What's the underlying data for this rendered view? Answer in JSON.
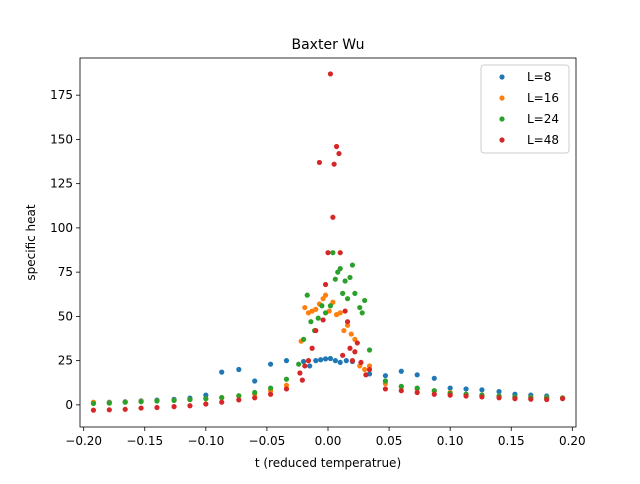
{
  "chart_data": {
    "type": "scatter",
    "title": "Baxter Wu",
    "xlabel": "t (reduced temperatrue)",
    "ylabel": "specific heat",
    "xlim": [
      -0.203,
      0.203
    ],
    "ylim": [
      -12.5,
      196
    ],
    "xticks": [
      -0.2,
      -0.15,
      -0.1,
      -0.05,
      0.0,
      0.05,
      0.1,
      0.15,
      0.2
    ],
    "xtick_labels": [
      "−0.20",
      "−0.15",
      "−0.10",
      "−0.05",
      "0.00",
      "0.05",
      "0.10",
      "0.15",
      "0.20"
    ],
    "yticks": [
      0,
      25,
      50,
      75,
      100,
      125,
      150,
      175
    ],
    "ytick_labels": [
      "0",
      "25",
      "50",
      "75",
      "100",
      "125",
      "150",
      "175"
    ],
    "grid": false,
    "legend_position": "top-right",
    "series": [
      {
        "name": "L=8",
        "color": "#1f77b4",
        "points": [
          [
            -0.192,
            1.0
          ],
          [
            -0.179,
            1.5
          ],
          [
            -0.166,
            1.8
          ],
          [
            -0.153,
            2.3
          ],
          [
            -0.14,
            2.7
          ],
          [
            -0.126,
            3.1
          ],
          [
            -0.113,
            3.8
          ],
          [
            -0.1,
            5.5
          ],
          [
            -0.087,
            18.5
          ],
          [
            -0.073,
            20.0
          ],
          [
            -0.06,
            13.5
          ],
          [
            -0.047,
            23.0
          ],
          [
            -0.034,
            25.0
          ],
          [
            -0.02,
            24.5
          ],
          [
            -0.015,
            22.0
          ],
          [
            -0.01,
            25.0
          ],
          [
            -0.006,
            25.5
          ],
          [
            -0.002,
            26.0
          ],
          [
            0.002,
            26.2
          ],
          [
            0.006,
            25.0
          ],
          [
            0.01,
            24.0
          ],
          [
            0.015,
            25.0
          ],
          [
            0.02,
            24.5
          ],
          [
            0.034,
            17.5
          ],
          [
            0.047,
            16.5
          ],
          [
            0.06,
            19.0
          ],
          [
            0.073,
            17.0
          ],
          [
            0.087,
            15.0
          ],
          [
            0.1,
            9.5
          ],
          [
            0.113,
            9.0
          ],
          [
            0.126,
            8.5
          ],
          [
            0.14,
            7.5
          ],
          [
            0.153,
            6.0
          ],
          [
            0.166,
            5.5
          ],
          [
            0.179,
            5.0
          ],
          [
            0.192,
            4.0
          ]
        ]
      },
      {
        "name": "L=16",
        "color": "#ff7f0e",
        "points": [
          [
            -0.192,
            1.5
          ],
          [
            -0.179,
            1.2
          ],
          [
            -0.166,
            1.6
          ],
          [
            -0.153,
            2.0
          ],
          [
            -0.14,
            2.3
          ],
          [
            -0.126,
            2.6
          ],
          [
            -0.113,
            3.0
          ],
          [
            -0.1,
            3.5
          ],
          [
            -0.087,
            4.0
          ],
          [
            -0.073,
            5.0
          ],
          [
            -0.06,
            6.0
          ],
          [
            -0.047,
            8.0
          ],
          [
            -0.034,
            11.0
          ],
          [
            -0.022,
            36.0
          ],
          [
            -0.019,
            55.0
          ],
          [
            -0.016,
            52.0
          ],
          [
            -0.013,
            53.0
          ],
          [
            -0.01,
            54.0
          ],
          [
            -0.007,
            57.0
          ],
          [
            -0.004,
            60.0
          ],
          [
            -0.002,
            62.0
          ],
          [
            0.001,
            53.0
          ],
          [
            0.004,
            58.0
          ],
          [
            0.007,
            51.0
          ],
          [
            0.01,
            52.0
          ],
          [
            0.013,
            42.0
          ],
          [
            0.016,
            45.0
          ],
          [
            0.019,
            40.0
          ],
          [
            0.022,
            37.0
          ],
          [
            0.026,
            22.0
          ],
          [
            0.03,
            20.0
          ],
          [
            0.034,
            22.0
          ],
          [
            0.047,
            12.0
          ],
          [
            0.06,
            10.0
          ],
          [
            0.073,
            9.0
          ],
          [
            0.087,
            8.0
          ],
          [
            0.1,
            7.0
          ],
          [
            0.113,
            6.0
          ],
          [
            0.126,
            5.5
          ],
          [
            0.14,
            5.0
          ],
          [
            0.153,
            4.5
          ],
          [
            0.166,
            4.3
          ],
          [
            0.179,
            4.2
          ],
          [
            0.192,
            4.0
          ]
        ]
      },
      {
        "name": "L=24",
        "color": "#2ca02c",
        "points": [
          [
            -0.192,
            0.8
          ],
          [
            -0.179,
            1.0
          ],
          [
            -0.166,
            1.5
          ],
          [
            -0.153,
            1.8
          ],
          [
            -0.14,
            2.2
          ],
          [
            -0.126,
            2.5
          ],
          [
            -0.113,
            3.0
          ],
          [
            -0.1,
            3.5
          ],
          [
            -0.087,
            4.2
          ],
          [
            -0.073,
            5.2
          ],
          [
            -0.06,
            7.0
          ],
          [
            -0.047,
            9.5
          ],
          [
            -0.034,
            14.5
          ],
          [
            -0.024,
            23.0
          ],
          [
            -0.02,
            37.0
          ],
          [
            -0.017,
            62.0
          ],
          [
            -0.014,
            47.0
          ],
          [
            -0.011,
            42.0
          ],
          [
            -0.008,
            49.0
          ],
          [
            -0.005,
            56.0
          ],
          [
            -0.002,
            52.0
          ],
          [
            0.002,
            56.0
          ],
          [
            0.004,
            86.0
          ],
          [
            0.006,
            71.0
          ],
          [
            0.008,
            75.0
          ],
          [
            0.01,
            77.0
          ],
          [
            0.012,
            63.0
          ],
          [
            0.014,
            70.0
          ],
          [
            0.016,
            60.0
          ],
          [
            0.018,
            72.0
          ],
          [
            0.02,
            79.0
          ],
          [
            0.022,
            63.0
          ],
          [
            0.026,
            55.0
          ],
          [
            0.028,
            52.0
          ],
          [
            0.03,
            59.0
          ],
          [
            0.034,
            31.0
          ],
          [
            0.047,
            13.5
          ],
          [
            0.06,
            10.5
          ],
          [
            0.073,
            9.5
          ],
          [
            0.087,
            8.0
          ],
          [
            0.1,
            6.5
          ],
          [
            0.113,
            6.0
          ],
          [
            0.126,
            5.5
          ],
          [
            0.14,
            5.0
          ],
          [
            0.153,
            4.5
          ],
          [
            0.166,
            4.2
          ],
          [
            0.179,
            4.0
          ],
          [
            0.192,
            3.8
          ]
        ]
      },
      {
        "name": "L=48",
        "color": "#d62728",
        "points": [
          [
            -0.192,
            -3.0
          ],
          [
            -0.179,
            -2.8
          ],
          [
            -0.166,
            -2.5
          ],
          [
            -0.153,
            -1.8
          ],
          [
            -0.14,
            -1.5
          ],
          [
            -0.126,
            -1.0
          ],
          [
            -0.113,
            -0.5
          ],
          [
            -0.1,
            0.5
          ],
          [
            -0.087,
            1.5
          ],
          [
            -0.073,
            2.8
          ],
          [
            -0.06,
            4.0
          ],
          [
            -0.047,
            6.0
          ],
          [
            -0.034,
            9.0
          ],
          [
            -0.023,
            18.0
          ],
          [
            -0.021,
            14.0
          ],
          [
            -0.019,
            22.0
          ],
          [
            -0.016,
            25.0
          ],
          [
            -0.013,
            32.0
          ],
          [
            -0.01,
            42.0
          ],
          [
            -0.007,
            137.0
          ],
          [
            -0.004,
            48.0
          ],
          [
            -0.002,
            68.0
          ],
          [
            0.0,
            86.0
          ],
          [
            0.002,
            187.0
          ],
          [
            0.004,
            106.0
          ],
          [
            0.005,
            136.0
          ],
          [
            0.007,
            146.0
          ],
          [
            0.009,
            142.0
          ],
          [
            0.01,
            86.0
          ],
          [
            0.012,
            28.0
          ],
          [
            0.014,
            53.0
          ],
          [
            0.016,
            47.0
          ],
          [
            0.018,
            32.0
          ],
          [
            0.02,
            25.0
          ],
          [
            0.022,
            30.0
          ],
          [
            0.024,
            35.0
          ],
          [
            0.027,
            24.0
          ],
          [
            0.031,
            17.0
          ],
          [
            0.034,
            20.0
          ],
          [
            0.047,
            9.0
          ],
          [
            0.06,
            8.0
          ],
          [
            0.073,
            7.0
          ],
          [
            0.087,
            6.0
          ],
          [
            0.1,
            5.5
          ],
          [
            0.113,
            5.0
          ],
          [
            0.126,
            4.5
          ],
          [
            0.14,
            4.0
          ],
          [
            0.153,
            3.5
          ],
          [
            0.166,
            3.2
          ],
          [
            0.179,
            3.0
          ],
          [
            0.192,
            3.5
          ]
        ]
      }
    ]
  }
}
